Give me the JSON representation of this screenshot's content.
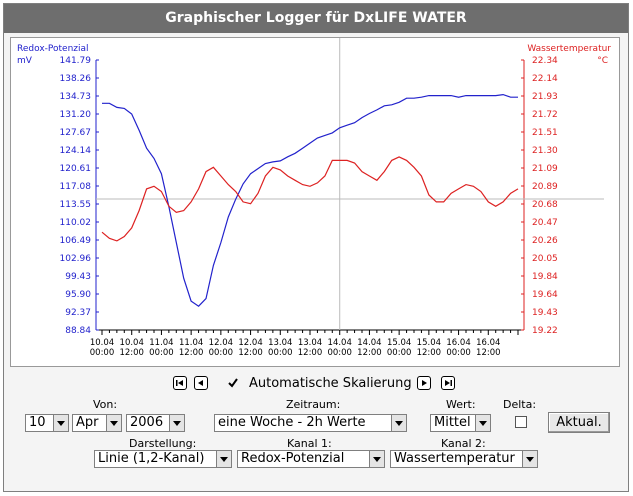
{
  "window": {
    "title": "Graphischer Logger für DxLIFE WATER"
  },
  "chart_data": {
    "type": "line",
    "left_axis": {
      "label": "Redox-Potenzial",
      "unit": "mV",
      "ticks": [
        "141.79",
        "138.26",
        "134.73",
        "131.20",
        "127.67",
        "124.14",
        "120.61",
        "117.08",
        "113.55",
        "110.02",
        "106.49",
        "102.96",
        "99.43",
        "95.90",
        "92.37",
        "88.84"
      ],
      "range": [
        88.84,
        141.79
      ],
      "color": "#2222cc"
    },
    "right_axis": {
      "label": "Wassertemperatur",
      "unit": "°C",
      "ticks": [
        "22.34",
        "22.14",
        "21.93",
        "21.72",
        "21.51",
        "21.30",
        "21.09",
        "20.89",
        "20.68",
        "20.47",
        "20.26",
        "20.05",
        "19.84",
        "19.64",
        "19.43",
        "19.22"
      ],
      "range": [
        19.22,
        22.34
      ],
      "color": "#dd2222"
    },
    "x_ticks": [
      {
        "date": "10.04",
        "time": "00:00"
      },
      {
        "date": "10.04",
        "time": "12:00"
      },
      {
        "date": "11.04",
        "time": "00:00"
      },
      {
        "date": "11.04",
        "time": "12:00"
      },
      {
        "date": "12.04",
        "time": "00:00"
      },
      {
        "date": "12.04",
        "time": "12:00"
      },
      {
        "date": "13.04",
        "time": "00:00"
      },
      {
        "date": "13.04",
        "time": "12:00"
      },
      {
        "date": "14.04",
        "time": "00:00"
      },
      {
        "date": "14.04",
        "time": "12:00"
      },
      {
        "date": "15.04",
        "time": "00:00"
      },
      {
        "date": "15.04",
        "time": "12:00"
      },
      {
        "date": "16.04",
        "time": "00:00"
      },
      {
        "date": "16.04",
        "time": "12:00"
      }
    ],
    "grid": "crosshair",
    "series": [
      {
        "name": "Redox-Potenzial",
        "axis": "left",
        "color": "#2222cc",
        "x": [
          0,
          0.25,
          0.5,
          0.75,
          1,
          1.25,
          1.5,
          1.75,
          2,
          2.25,
          2.5,
          2.75,
          3,
          3.25,
          3.5,
          3.75,
          4,
          4.25,
          4.5,
          4.75,
          5,
          5.25,
          5.5,
          5.75,
          6,
          6.25,
          6.5,
          6.75,
          7,
          7.25,
          7.5,
          7.75,
          8,
          8.25,
          8.5,
          8.75,
          9,
          9.25,
          9.5,
          9.75,
          10,
          10.25,
          10.5,
          10.75,
          11,
          11.25,
          11.5,
          11.75,
          12,
          12.25,
          12.5,
          12.75,
          13,
          13.25,
          13.5,
          13.75,
          14
        ],
        "values": [
          133.3,
          133.3,
          132.5,
          132.3,
          131.2,
          128.0,
          124.5,
          122.5,
          119.5,
          113.0,
          106.0,
          99.0,
          94.5,
          93.5,
          95.0,
          101.5,
          106.0,
          111.0,
          114.5,
          117.5,
          119.5,
          120.5,
          121.5,
          121.8,
          122.0,
          122.8,
          123.5,
          124.5,
          125.5,
          126.5,
          127.0,
          127.5,
          128.5,
          129.0,
          129.5,
          130.5,
          131.3,
          132.0,
          132.8,
          133.0,
          133.5,
          134.3,
          134.3,
          134.5,
          134.8,
          134.8,
          134.8,
          134.8,
          134.5,
          134.8,
          134.8,
          134.8,
          134.8,
          134.8,
          135.0,
          134.5,
          134.5
        ]
      },
      {
        "name": "Wassertemperatur",
        "axis": "right",
        "color": "#dd2222",
        "x": [
          0,
          0.25,
          0.5,
          0.75,
          1,
          1.25,
          1.5,
          1.75,
          2,
          2.25,
          2.5,
          2.75,
          3,
          3.25,
          3.5,
          3.75,
          4,
          4.25,
          4.5,
          4.75,
          5,
          5.25,
          5.5,
          5.75,
          6,
          6.25,
          6.5,
          6.75,
          7,
          7.25,
          7.5,
          7.75,
          8,
          8.25,
          8.5,
          8.75,
          9,
          9.25,
          9.5,
          9.75,
          10,
          10.25,
          10.5,
          10.75,
          11,
          11.25,
          11.5,
          11.75,
          12,
          12.25,
          12.5,
          12.75,
          13,
          13.25,
          13.5,
          13.75,
          14
        ],
        "values": [
          20.35,
          20.28,
          20.25,
          20.3,
          20.4,
          20.6,
          20.85,
          20.88,
          20.82,
          20.65,
          20.58,
          20.6,
          20.7,
          20.85,
          21.05,
          21.1,
          21.0,
          20.9,
          20.82,
          20.7,
          20.68,
          20.8,
          21.0,
          21.1,
          21.07,
          21.0,
          20.95,
          20.9,
          20.88,
          20.92,
          21.0,
          21.18,
          21.18,
          21.18,
          21.15,
          21.05,
          21.0,
          20.95,
          21.05,
          21.18,
          21.22,
          21.18,
          21.1,
          21.0,
          20.78,
          20.7,
          20.7,
          20.8,
          20.85,
          20.9,
          20.88,
          20.82,
          20.7,
          20.65,
          20.7,
          20.8,
          20.85
        ]
      }
    ]
  },
  "nav": {
    "autoscale_label": "Automatische Skalierung",
    "autoscale_checked": true,
    "first_icon": "skip-first-icon",
    "prev_icon": "prev-icon",
    "next_icon": "next-icon",
    "last_icon": "skip-last-icon"
  },
  "controls": {
    "von_label": "Von:",
    "day": "10",
    "month": "Apr",
    "year": "2006",
    "zeitraum_label": "Zeitraum:",
    "zeitraum": "eine Woche - 2h Werte",
    "wert_label": "Wert:",
    "wert": "Mittel",
    "delta_label": "Delta:",
    "update_button": "Aktual.",
    "darstellung_label": "Darstellung:",
    "darstellung": "Linie (1,2-Kanal)",
    "kanal1_label": "Kanal 1:",
    "kanal1": "Redox-Potenzial",
    "kanal2_label": "Kanal 2:",
    "kanal2": "Wassertemperatur"
  }
}
